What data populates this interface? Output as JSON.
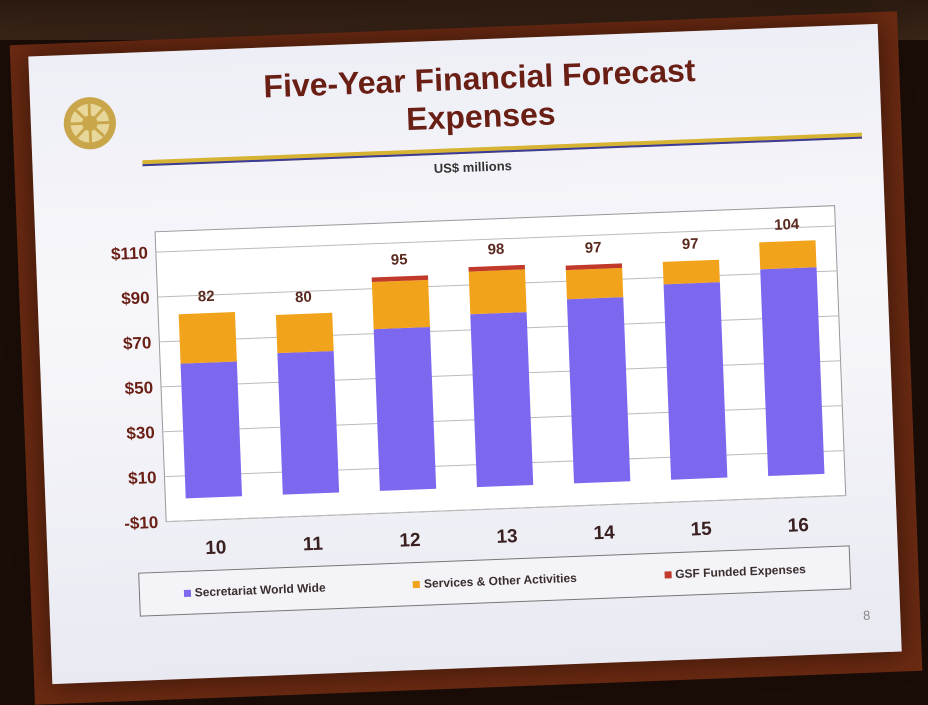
{
  "slide": {
    "title_line1": "Five-Year Financial Forecast",
    "title_line2": "Expenses",
    "units": "US$ millions",
    "page_number": "8"
  },
  "colors": {
    "secretariat": "#7b68ee",
    "services": "#f2a31c",
    "gsf": "#c0392b",
    "title": "#6a1f15",
    "rule_gold": "#d6b332",
    "rule_blue": "#3b3b9a"
  },
  "chart_data": {
    "type": "bar",
    "stacked": true,
    "categories": [
      "10",
      "11",
      "12",
      "13",
      "14",
      "15",
      "16"
    ],
    "series": [
      {
        "name": "Secretariat World Wide",
        "values": [
          60,
          63,
          72,
          77,
          82,
          87,
          92
        ]
      },
      {
        "name": "Services & Other Activities",
        "values": [
          22,
          17,
          21,
          19,
          13,
          10,
          12
        ]
      },
      {
        "name": "GSF Funded Expenses",
        "values": [
          0,
          0,
          2,
          2,
          2,
          0,
          0
        ]
      }
    ],
    "totals": [
      "82",
      "80",
      "95",
      "98",
      "97",
      "97",
      "104"
    ],
    "ylim": [
      -10,
      110
    ],
    "yticks": [
      "-$10",
      "$10",
      "$30",
      "$50",
      "$70",
      "$90",
      "$110"
    ],
    "ytick_values": [
      -10,
      10,
      30,
      50,
      70,
      90,
      110
    ],
    "grid": true,
    "legend": "bottom"
  }
}
